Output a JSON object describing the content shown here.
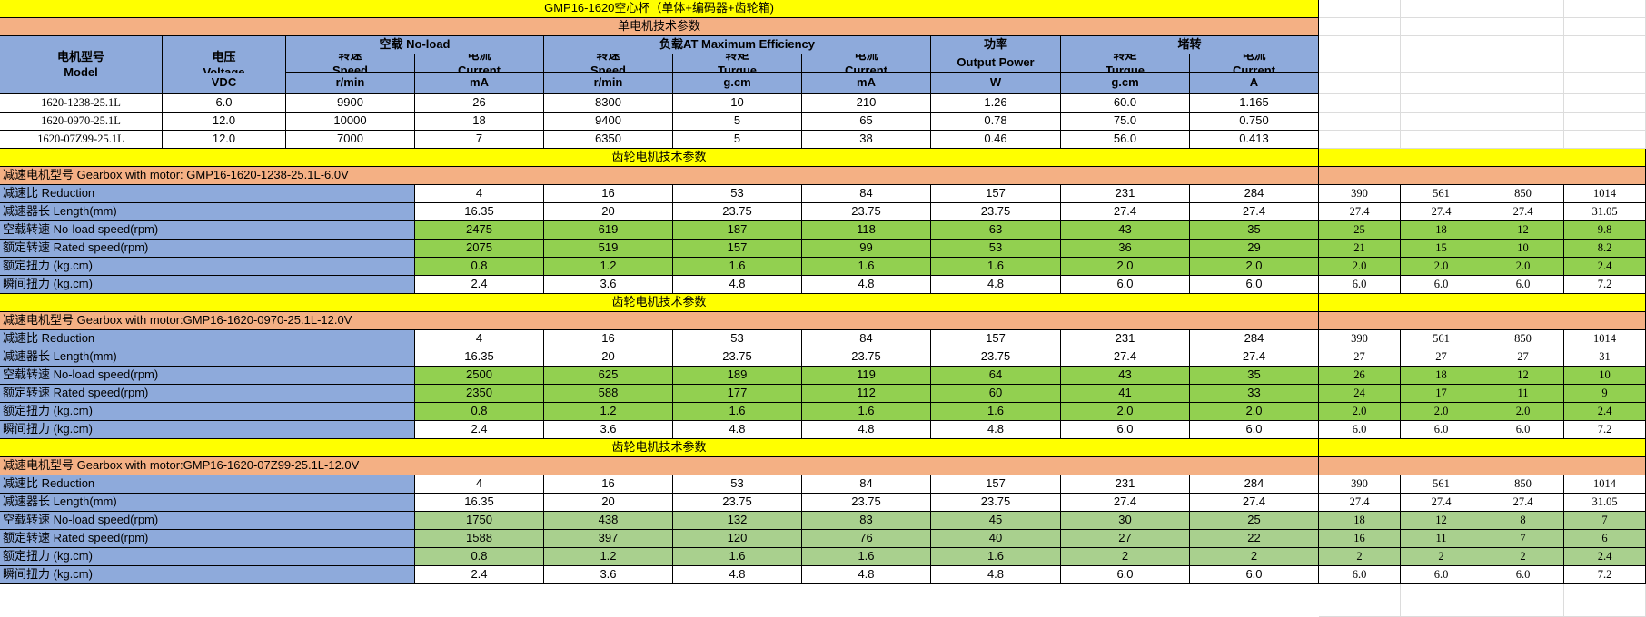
{
  "title": "GMP16-1620空心杯（单体+编码器+齿轮箱)",
  "motor_section": {
    "title": "单电机技术参数",
    "header": {
      "model_cn": "电机型号",
      "model_en": "Model",
      "voltage_cn": "电压",
      "voltage_en": "Voltage",
      "voltage_unit": "VDC",
      "noload_group": "空载 No-load",
      "maxeff_group": "负载AT Maximum Efficiency",
      "power_group": "功率",
      "stall_group": "堵转",
      "speed_cn": "转速",
      "speed_en": "Speed",
      "speed_unit": "r/min",
      "current_cn": "电流",
      "current_en": "Current",
      "current_unit_ma": "mA",
      "current_unit_a": "A",
      "torque_cn": "转矩",
      "torque_en": "Turque",
      "torque_unit": "g.cm",
      "output_power": "Output Power",
      "power_unit": "W"
    },
    "rows": [
      [
        "1620-1238-25.1L",
        "6.0",
        "9900",
        "26",
        "8300",
        "10",
        "210",
        "1.26",
        "60.0",
        "1.165"
      ],
      [
        "1620-0970-25.1L",
        "12.0",
        "10000",
        "18",
        "9400",
        "5",
        "65",
        "0.78",
        "75.0",
        "0.750"
      ],
      [
        "1620-07Z99-25.1L",
        "12.0",
        "7000",
        "7",
        "6350",
        "5",
        "38",
        "0.46",
        "56.0",
        "0.413"
      ]
    ]
  },
  "gear_sections": [
    {
      "title": "齿轮电机技术参数",
      "subtitle": "减速电机型号  Gearbox with motor:  GMP16-1620-1238-25.1L-6.0V",
      "rows": [
        {
          "label": "减速比  Reduction",
          "values": [
            "4",
            "16",
            "53",
            "84",
            "157",
            "231",
            "284"
          ],
          "extra": [
            "390",
            "561",
            "850",
            "1014"
          ]
        },
        {
          "label": "减速器长  Length(mm)",
          "values": [
            "16.35",
            "20",
            "23.75",
            "23.75",
            "23.75",
            "27.4",
            "27.4"
          ],
          "extra": [
            "27.4",
            "27.4",
            "27.4",
            "31.05"
          ]
        },
        {
          "label": "空载转速  No-load speed(rpm)",
          "values": [
            "2475",
            "619",
            "187",
            "118",
            "63",
            "43",
            "35"
          ],
          "extra": [
            "25",
            "18",
            "12",
            "9.8"
          ]
        },
        {
          "label": "额定转速  Rated speed(rpm)",
          "values": [
            "2075",
            "519",
            "157",
            "99",
            "53",
            "36",
            "29"
          ],
          "extra": [
            "21",
            "15",
            "10",
            "8.2"
          ]
        },
        {
          "label": "额定扭力  (kg.cm)",
          "values": [
            "0.8",
            "1.2",
            "1.6",
            "1.6",
            "1.6",
            "2.0",
            "2.0"
          ],
          "extra": [
            "2.0",
            "2.0",
            "2.0",
            "2.4"
          ]
        },
        {
          "label": "瞬间扭力  (kg.cm)",
          "values": [
            "2.4",
            "3.6",
            "4.8",
            "4.8",
            "4.8",
            "6.0",
            "6.0"
          ],
          "extra": [
            "6.0",
            "6.0",
            "6.0",
            "7.2"
          ]
        }
      ]
    },
    {
      "title": "齿轮电机技术参数",
      "subtitle": "减速电机型号  Gearbox with motor:GMP16-1620-0970-25.1L-12.0V",
      "rows": [
        {
          "label": "减速比  Reduction",
          "values": [
            "4",
            "16",
            "53",
            "84",
            "157",
            "231",
            "284"
          ],
          "extra": [
            "390",
            "561",
            "850",
            "1014"
          ]
        },
        {
          "label": "减速器长  Length(mm)",
          "values": [
            "16.35",
            "20",
            "23.75",
            "23.75",
            "23.75",
            "27.4",
            "27.4"
          ],
          "extra": [
            "27",
            "27",
            "27",
            "31"
          ]
        },
        {
          "label": "空载转速  No-load speed(rpm)",
          "values": [
            "2500",
            "625",
            "189",
            "119",
            "64",
            "43",
            "35"
          ],
          "extra": [
            "26",
            "18",
            "12",
            "10"
          ]
        },
        {
          "label": "额定转速  Rated speed(rpm)",
          "values": [
            "2350",
            "588",
            "177",
            "112",
            "60",
            "41",
            "33"
          ],
          "extra": [
            "24",
            "17",
            "11",
            "9"
          ]
        },
        {
          "label": "额定扭力  (kg.cm)",
          "values": [
            "0.8",
            "1.2",
            "1.6",
            "1.6",
            "1.6",
            "2.0",
            "2.0"
          ],
          "extra": [
            "2.0",
            "2.0",
            "2.0",
            "2.4"
          ]
        },
        {
          "label": "瞬间扭力  (kg.cm)",
          "values": [
            "2.4",
            "3.6",
            "4.8",
            "4.8",
            "4.8",
            "6.0",
            "6.0"
          ],
          "extra": [
            "6.0",
            "6.0",
            "6.0",
            "7.2"
          ]
        }
      ]
    },
    {
      "title": "齿轮电机技术参数",
      "subtitle": "减速电机型号  Gearbox with motor:GMP16-1620-07Z99-25.1L-12.0V",
      "rows": [
        {
          "label": "减速比  Reduction",
          "values": [
            "4",
            "16",
            "53",
            "84",
            "157",
            "231",
            "284"
          ],
          "extra": [
            "390",
            "561",
            "850",
            "1014"
          ]
        },
        {
          "label": "减速器长  Length(mm)",
          "values": [
            "16.35",
            "20",
            "23.75",
            "23.75",
            "23.75",
            "27.4",
            "27.4"
          ],
          "extra": [
            "27.4",
            "27.4",
            "27.4",
            "31.05"
          ]
        },
        {
          "label": "空载转速  No-load speed(rpm)",
          "values": [
            "1750",
            "438",
            "132",
            "83",
            "45",
            "30",
            "25"
          ],
          "extra": [
            "18",
            "12",
            "8",
            "7"
          ]
        },
        {
          "label": "额定转速  Rated speed(rpm)",
          "values": [
            "1588",
            "397",
            "120",
            "76",
            "40",
            "27",
            "22"
          ],
          "extra": [
            "16",
            "11",
            "7",
            "6"
          ]
        },
        {
          "label": "额定扭力  (kg.cm)",
          "values": [
            "0.8",
            "1.2",
            "1.6",
            "1.6",
            "1.6",
            "2",
            "2"
          ],
          "extra": [
            "2",
            "2",
            "2",
            "2.4"
          ]
        },
        {
          "label": "瞬间扭力  (kg.cm)",
          "values": [
            "2.4",
            "3.6",
            "4.8",
            "4.8",
            "4.8",
            "6.0",
            "6.0"
          ],
          "extra": [
            "6.0",
            "6.0",
            "6.0",
            "7.2"
          ]
        }
      ]
    }
  ],
  "colors": {
    "title_band": "#ffff00",
    "section_band": "#f4b084",
    "header_blue": "#8eaadb",
    "speed_green": "#92d050",
    "speed_light_green": "#a9d08e"
  }
}
